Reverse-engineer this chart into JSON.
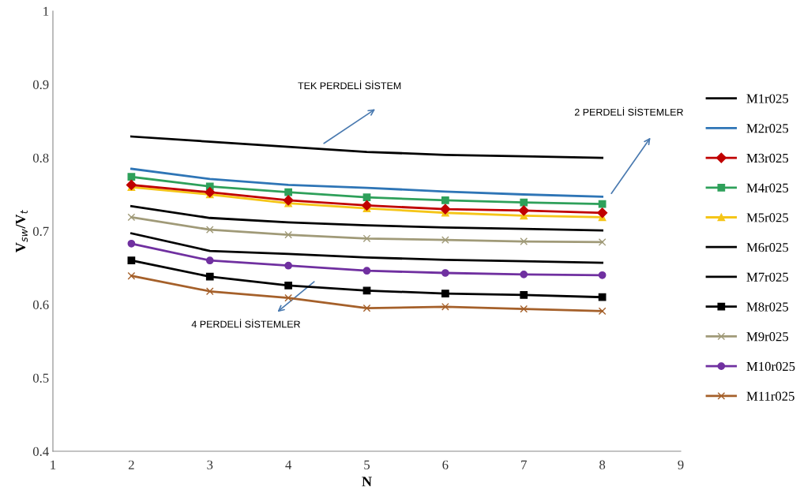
{
  "chart_data": {
    "type": "line",
    "xlabel": "N",
    "ylabel": "V$_{sw}$/V$_{t}$",
    "x": [
      2,
      3,
      4,
      5,
      6,
      7,
      8
    ],
    "xlim": [
      1,
      9
    ],
    "xticks": [
      1,
      2,
      3,
      4,
      5,
      6,
      7,
      8,
      9
    ],
    "ylim": [
      0.4,
      1
    ],
    "yticks": [
      0.4,
      0.5,
      0.6,
      0.7,
      0.8,
      0.9,
      1
    ],
    "grid": false,
    "legend": "right",
    "annotations": [
      "TEK PERDELİ SİSTEM",
      "2 PERDELİ SİSTEMLER",
      "4 PERDELİ SİSTEMLER"
    ],
    "series": [
      {
        "name": "M1r025",
        "color": "#000000",
        "marker": "none",
        "values": [
          0.829,
          0.822,
          0.815,
          0.808,
          0.804,
          0.802,
          0.8
        ]
      },
      {
        "name": "M2r025",
        "color": "#2e75b6",
        "marker": "none",
        "values": [
          0.785,
          0.771,
          0.763,
          0.759,
          0.754,
          0.75,
          0.747
        ]
      },
      {
        "name": "M3r025",
        "color": "#c00000",
        "marker": "diamond",
        "values": [
          0.763,
          0.753,
          0.742,
          0.735,
          0.73,
          0.728,
          0.725
        ]
      },
      {
        "name": "M4r025",
        "color": "#2ea05a",
        "marker": "square",
        "values": [
          0.774,
          0.761,
          0.753,
          0.746,
          0.742,
          0.739,
          0.737
        ]
      },
      {
        "name": "M5r025",
        "color": "#f5c518",
        "marker": "triangle",
        "values": [
          0.76,
          0.75,
          0.738,
          0.731,
          0.725,
          0.721,
          0.719
        ]
      },
      {
        "name": "M6r025",
        "color": "#000000",
        "marker": "none",
        "values": [
          0.734,
          0.718,
          0.712,
          0.708,
          0.705,
          0.703,
          0.701
        ]
      },
      {
        "name": "M7r025",
        "color": "#000000",
        "marker": "none",
        "values": [
          0.697,
          0.673,
          0.669,
          0.664,
          0.661,
          0.659,
          0.657
        ]
      },
      {
        "name": "M8r025",
        "color": "#000000",
        "marker": "square",
        "values": [
          0.66,
          0.638,
          0.626,
          0.619,
          0.615,
          0.613,
          0.61
        ]
      },
      {
        "name": "M9r025",
        "color": "#a09a78",
        "marker": "cross",
        "values": [
          0.719,
          0.702,
          0.695,
          0.69,
          0.688,
          0.686,
          0.685
        ]
      },
      {
        "name": "M10r025",
        "color": "#7030a0",
        "marker": "circle",
        "values": [
          0.683,
          0.66,
          0.653,
          0.646,
          0.643,
          0.641,
          0.64
        ]
      },
      {
        "name": "M11r025",
        "color": "#a5602a",
        "marker": "cross",
        "values": [
          0.639,
          0.618,
          0.609,
          0.595,
          0.597,
          0.594,
          0.591
        ]
      }
    ]
  }
}
